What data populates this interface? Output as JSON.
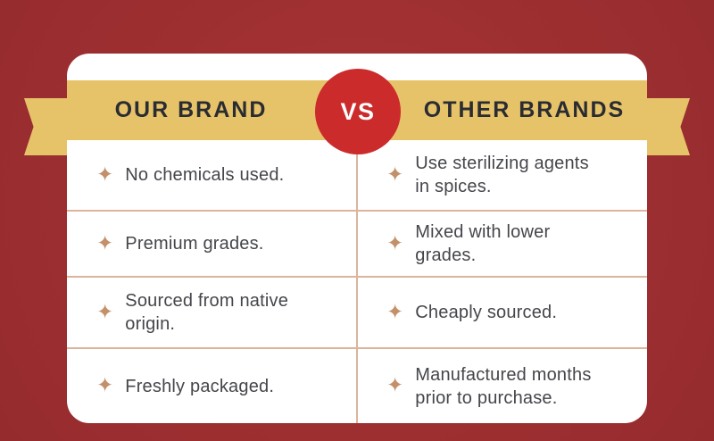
{
  "banner": {
    "left_title": "OUR BRAND",
    "vs_label": "VS",
    "right_title": "OTHER BRANDS"
  },
  "comparison": {
    "our_brand": [
      "No chemicals used.",
      "Premium grades.",
      "Sourced from native\norigin.",
      "Freshly packaged."
    ],
    "other_brands": [
      "Use sterilizing agents\nin spices.",
      "Mixed with lower\ngrades.",
      "Cheaply sourced.",
      "Manufactured months\nprior to purchase."
    ]
  },
  "icon": {
    "name": "sparkle-icon",
    "glyph": "✦"
  },
  "colors": {
    "background_red": "#9e2f31",
    "banner_gold": "#e6c369",
    "vs_circle_red": "#cc2b2c",
    "divider_tan": "#dcb49c",
    "bullet_tan": "#c3906a",
    "heading_text": "#2b2c32",
    "body_text": "#45464b",
    "card_white": "#ffffff"
  }
}
